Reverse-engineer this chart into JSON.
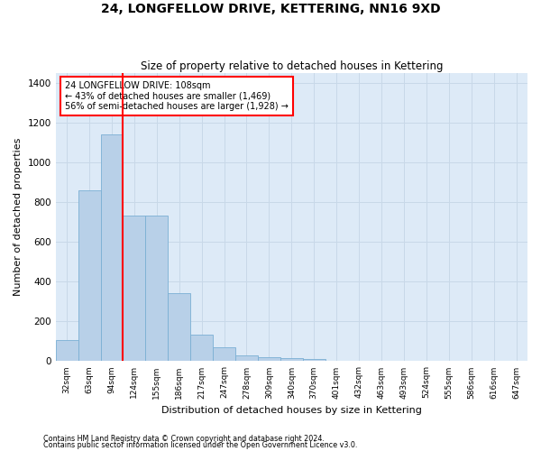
{
  "title": "24, LONGFELLOW DRIVE, KETTERING, NN16 9XD",
  "subtitle": "Size of property relative to detached houses in Kettering",
  "xlabel": "Distribution of detached houses by size in Kettering",
  "ylabel": "Number of detached properties",
  "bar_color": "#b8d0e8",
  "bar_edge_color": "#7aafd4",
  "grid_color": "#c8d8e8",
  "background_color": "#ddeaf7",
  "property_line_color": "red",
  "annotation_text": "24 LONGFELLOW DRIVE: 108sqm\n← 43% of detached houses are smaller (1,469)\n56% of semi-detached houses are larger (1,928) →",
  "footnote1": "Contains HM Land Registry data © Crown copyright and database right 2024.",
  "footnote2": "Contains public sector information licensed under the Open Government Licence v3.0.",
  "bin_labels": [
    "32sqm",
    "63sqm",
    "94sqm",
    "124sqm",
    "155sqm",
    "186sqm",
    "217sqm",
    "247sqm",
    "278sqm",
    "309sqm",
    "340sqm",
    "370sqm",
    "401sqm",
    "432sqm",
    "463sqm",
    "493sqm",
    "524sqm",
    "555sqm",
    "586sqm",
    "616sqm",
    "647sqm"
  ],
  "bar_values": [
    105,
    860,
    1140,
    730,
    730,
    340,
    135,
    70,
    30,
    20,
    15,
    10,
    0,
    0,
    0,
    0,
    0,
    0,
    0,
    0,
    0
  ],
  "ylim": [
    0,
    1450
  ],
  "yticks": [
    0,
    200,
    400,
    600,
    800,
    1000,
    1200,
    1400
  ]
}
